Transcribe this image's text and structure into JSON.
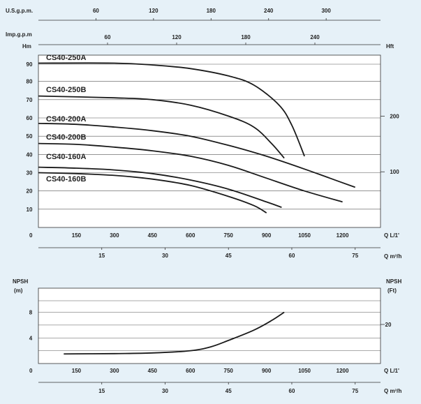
{
  "chart_data": [
    {
      "type": "line",
      "title": "",
      "ylabel": "Hm",
      "ylabel_right": "Hft",
      "xlabel": "Q L/1'",
      "top_axis_1_label": "U.S.g.p.m.",
      "top_axis_2_label": "Imp.g.p.m",
      "bottom_axis_2_label": "Q m³/h",
      "xlim": [
        0,
        1350
      ],
      "ylim": [
        0,
        99
      ],
      "x_ticks": [
        "0",
        "150",
        "300",
        "450",
        "600",
        "750",
        "900",
        "1050",
        "1200"
      ],
      "y_ticks": [
        "10",
        "20",
        "30",
        "40",
        "50",
        "60",
        "70",
        "80",
        "90"
      ],
      "y_right_ticks": [
        "100",
        "200"
      ],
      "usgpm_ticks": [
        "60",
        "120",
        "180",
        "240",
        "300"
      ],
      "impgpm_ticks": [
        "60",
        "120",
        "180",
        "240"
      ],
      "m3h_ticks": [
        "15",
        "30",
        "45",
        "60",
        "75"
      ],
      "grid": true,
      "series": [
        {
          "name": "CS40-250A",
          "x": [
            0,
            300,
            450,
            600,
            750,
            850,
            950,
            1000,
            1050
          ],
          "y": [
            90,
            90,
            89,
            87,
            83,
            78,
            67,
            56,
            39
          ]
        },
        {
          "name": "CS40-250B",
          "x": [
            0,
            300,
            450,
            600,
            750,
            850,
            920,
            970
          ],
          "y": [
            72,
            71,
            70,
            67,
            61,
            55,
            46,
            38
          ]
        },
        {
          "name": "CS40-200A",
          "x": [
            0,
            150,
            300,
            450,
            600,
            750,
            900,
            1050,
            1150,
            1250
          ],
          "y": [
            57,
            56.5,
            55,
            53,
            50,
            45,
            39,
            32,
            27,
            22
          ]
        },
        {
          "name": "CS40-200B",
          "x": [
            0,
            150,
            300,
            450,
            600,
            750,
            900,
            1050,
            1200
          ],
          "y": [
            46,
            45.5,
            44,
            42,
            39,
            34,
            27,
            20,
            14
          ]
        },
        {
          "name": "CS40-160A",
          "x": [
            0,
            150,
            300,
            450,
            600,
            750,
            900,
            960
          ],
          "y": [
            33,
            32.5,
            31.5,
            29.5,
            26,
            21,
            14,
            11
          ]
        },
        {
          "name": "CS40-160B",
          "x": [
            0,
            150,
            300,
            450,
            600,
            750,
            850,
            900
          ],
          "y": [
            30,
            29.5,
            28.5,
            26.5,
            23,
            17,
            12,
            8
          ]
        }
      ]
    },
    {
      "type": "line",
      "title": "",
      "ylabel": "NPSH (m)",
      "ylabel_right": "NPSH (Ft)",
      "xlabel": "Q L/1'",
      "bottom_axis_2_label": "Q m³/h",
      "xlim": [
        0,
        1350
      ],
      "ylim": [
        0,
        10
      ],
      "x_ticks": [
        "0",
        "150",
        "300",
        "450",
        "600",
        "750",
        "900",
        "1050",
        "1200"
      ],
      "y_ticks": [
        "4",
        "8"
      ],
      "y_right_ticks": [
        "20"
      ],
      "m3h_ticks": [
        "15",
        "30",
        "45",
        "60",
        "75"
      ],
      "grid": true,
      "series": [
        {
          "name": "",
          "x": [
            100,
            300,
            450,
            600,
            680,
            750,
            850,
            920,
            970
          ],
          "y": [
            1.5,
            1.55,
            1.65,
            2.0,
            2.6,
            3.6,
            5.2,
            6.7,
            8.0
          ]
        }
      ]
    }
  ]
}
